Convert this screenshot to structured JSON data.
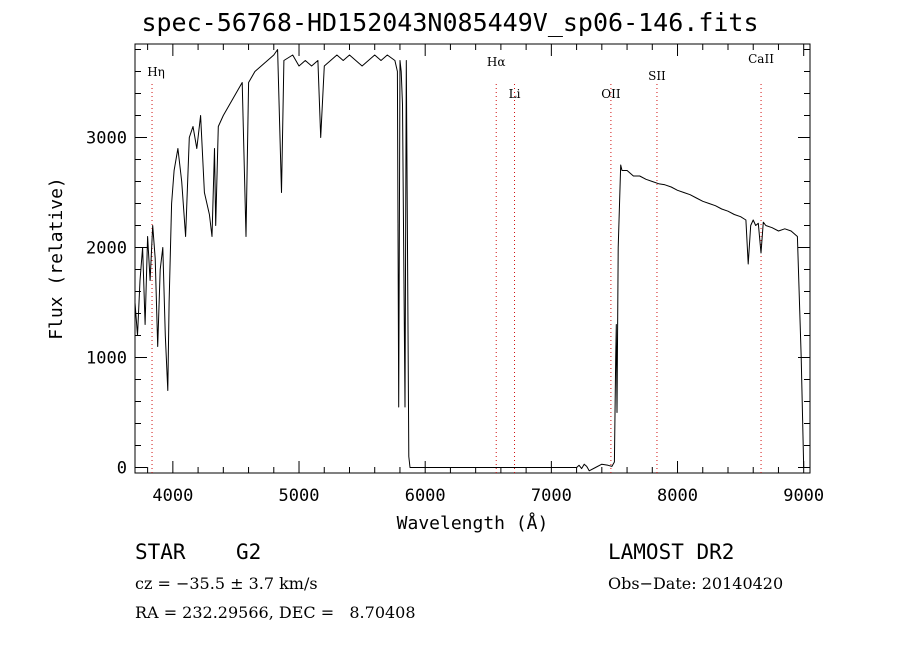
{
  "chart_data": {
    "type": "line",
    "title": "spec-56768-HD152043N085449V_sp06-146.fits",
    "xlabel": "Wavelength (Å)",
    "ylabel": "Flux (relative)",
    "xlim": [
      3700,
      9050
    ],
    "ylim": [
      -50,
      3850
    ],
    "x_ticks": [
      4000,
      5000,
      6000,
      7000,
      8000,
      9000
    ],
    "y_ticks": [
      0,
      1000,
      2000,
      3000
    ],
    "grid": false,
    "series": [
      {
        "x": [
          3700,
          3720,
          3740,
          3760,
          3780,
          3800,
          3820,
          3840,
          3860,
          3880,
          3900,
          3920,
          3940,
          3960,
          3970,
          3990,
          4010,
          4040,
          4070,
          4101,
          4130,
          4160,
          4190,
          4220,
          4250,
          4290,
          4310,
          4330,
          4340,
          4360,
          4400,
          4450,
          4500,
          4550,
          4580,
          4600,
          4650,
          4700,
          4750,
          4800,
          4830,
          4861,
          4880,
          4950,
          5000,
          5050,
          5100,
          5150,
          5172,
          5200,
          5250,
          5300,
          5350,
          5400,
          5450,
          5500,
          5550,
          5600,
          5650,
          5700,
          5760,
          5780,
          5790,
          5800,
          5810,
          5820,
          5840,
          5850,
          5860,
          5870,
          5880,
          5900,
          6500,
          7000,
          7200,
          7220,
          7240,
          7260,
          7280,
          7300,
          7350,
          7400,
          7450,
          7480,
          7500,
          7510,
          7515,
          7520,
          7530,
          7550,
          7560,
          7600,
          7650,
          7700,
          7750,
          7800,
          7850,
          7900,
          7950,
          8000,
          8050,
          8100,
          8150,
          8200,
          8250,
          8300,
          8350,
          8400,
          8450,
          8500,
          8542,
          8560,
          8580,
          8600,
          8620,
          8640,
          8662,
          8680,
          8700,
          8750,
          8800,
          8850,
          8900,
          8950,
          8980,
          9000
        ],
        "y": [
          1500,
          1200,
          1700,
          2000,
          1300,
          2100,
          1700,
          2200,
          1900,
          1100,
          1800,
          2000,
          1200,
          700,
          1500,
          2400,
          2700,
          2900,
          2600,
          2100,
          3000,
          3100,
          2900,
          3200,
          2500,
          2300,
          2100,
          2900,
          2200,
          3100,
          3200,
          3300,
          3400,
          3500,
          2100,
          3500,
          3600,
          3650,
          3700,
          3750,
          3800,
          2500,
          3700,
          3750,
          3650,
          3700,
          3650,
          3700,
          3000,
          3650,
          3700,
          3750,
          3700,
          3750,
          3700,
          3650,
          3700,
          3750,
          3700,
          3750,
          3700,
          3600,
          550,
          3700,
          3600,
          3300,
          550,
          3700,
          2000,
          100,
          0,
          0,
          0,
          0,
          0,
          20,
          -10,
          30,
          10,
          -30,
          0,
          30,
          20,
          10,
          50,
          1000,
          1300,
          500,
          2000,
          2750,
          2700,
          2700,
          2650,
          2650,
          2620,
          2600,
          2580,
          2570,
          2550,
          2520,
          2500,
          2480,
          2450,
          2420,
          2400,
          2380,
          2350,
          2330,
          2300,
          2280,
          2250,
          1850,
          2200,
          2250,
          2200,
          2220,
          1950,
          2230,
          2200,
          2180,
          2150,
          2170,
          2150,
          2100,
          1000,
          0
        ]
      }
    ],
    "line_markers": [
      {
        "label": "Hη",
        "x": 3835
      },
      {
        "label": "Hα",
        "x": 6563
      },
      {
        "label": "Li",
        "x": 6708
      },
      {
        "label": "OII",
        "x": 7472
      },
      {
        "label": "SII",
        "x": 7837
      },
      {
        "label": "CaII",
        "x": 8662
      }
    ]
  },
  "info": {
    "object_class": "STAR",
    "subclass": "G2",
    "survey": "LAMOST DR2",
    "cz": "cz = −35.5 ± 3.7 km/s",
    "obs_date": "Obs−Date: 20140420",
    "radec": "RA = 232.29566, DEC =   8.70408"
  }
}
